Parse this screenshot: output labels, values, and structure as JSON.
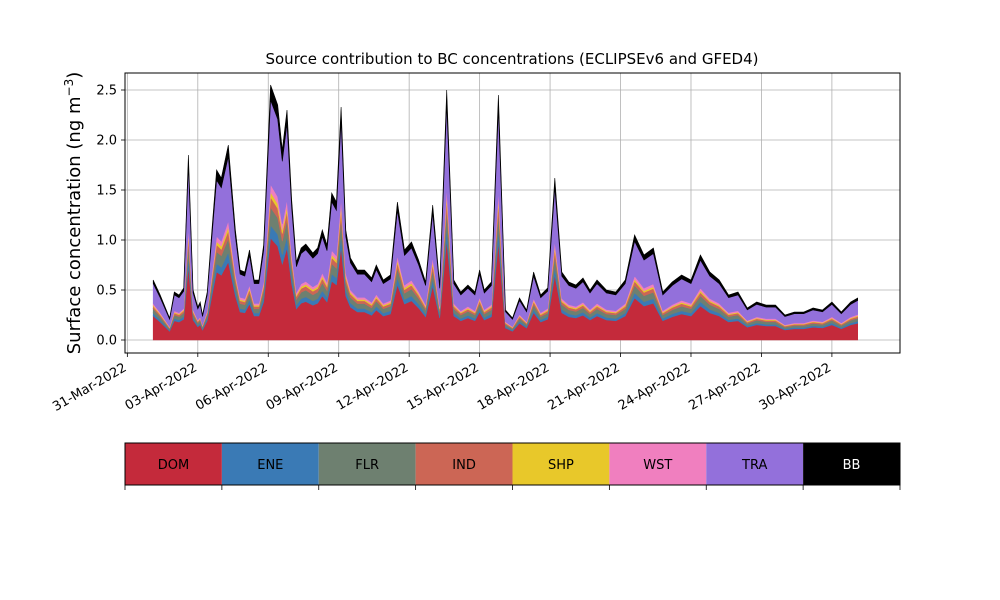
{
  "chart_data": {
    "type": "area",
    "stacked": true,
    "title": "Source contribution to BC concentrations (ECLIPSEv6 and GFED4)",
    "ylabel": "Surface concentration (ng m",
    "ylabel_sup": "−3",
    "ylabel_close": ")",
    "xlabel": "",
    "x_unit": "days since 31-Mar-2022",
    "xlim": [
      -0.1,
      32.9
    ],
    "ylim": [
      -0.13,
      2.67
    ],
    "grid": true,
    "x_ticks": [
      {
        "x": 0,
        "label": "31-Mar-2022"
      },
      {
        "x": 3,
        "label": "03-Apr-2022"
      },
      {
        "x": 6,
        "label": "06-Apr-2022"
      },
      {
        "x": 9,
        "label": "09-Apr-2022"
      },
      {
        "x": 12,
        "label": "12-Apr-2022"
      },
      {
        "x": 15,
        "label": "15-Apr-2022"
      },
      {
        "x": 18,
        "label": "18-Apr-2022"
      },
      {
        "x": 21,
        "label": "21-Apr-2022"
      },
      {
        "x": 24,
        "label": "24-Apr-2022"
      },
      {
        "x": 27,
        "label": "27-Apr-2022"
      },
      {
        "x": 30,
        "label": "30-Apr-2022"
      }
    ],
    "y_ticks": [
      {
        "y": 0.0,
        "label": "0.0"
      },
      {
        "y": 0.5,
        "label": "0.5"
      },
      {
        "y": 1.0,
        "label": "1.0"
      },
      {
        "y": 1.5,
        "label": "1.5"
      },
      {
        "y": 2.0,
        "label": "2.0"
      },
      {
        "y": 2.5,
        "label": "2.5"
      }
    ],
    "x": [
      1.1,
      1.4,
      1.8,
      2.0,
      2.2,
      2.4,
      2.6,
      2.8,
      3.0,
      3.1,
      3.2,
      3.4,
      3.6,
      3.8,
      4.0,
      4.3,
      4.6,
      4.8,
      5.0,
      5.2,
      5.4,
      5.6,
      5.8,
      6.1,
      6.4,
      6.6,
      6.8,
      7.0,
      7.2,
      7.4,
      7.6,
      7.9,
      8.1,
      8.3,
      8.5,
      8.7,
      8.9,
      9.1,
      9.3,
      9.5,
      9.8,
      10.1,
      10.4,
      10.6,
      10.9,
      11.2,
      11.5,
      11.8,
      12.1,
      12.4,
      12.7,
      13.0,
      13.3,
      13.6,
      13.9,
      14.2,
      14.5,
      14.8,
      15.0,
      15.2,
      15.5,
      15.8,
      16.1,
      16.4,
      16.7,
      17.0,
      17.3,
      17.6,
      17.9,
      18.2,
      18.5,
      18.8,
      19.1,
      19.4,
      19.7,
      20.0,
      20.4,
      20.8,
      21.2,
      21.6,
      22.0,
      22.4,
      22.8,
      23.2,
      23.6,
      24.0,
      24.4,
      24.8,
      25.2,
      25.6,
      26.0,
      26.4,
      26.8,
      27.2,
      27.6,
      28.0,
      28.4,
      28.8,
      29.2,
      29.6,
      30.0,
      30.4,
      30.8,
      31.1
    ],
    "total": [
      0.6,
      0.45,
      0.22,
      0.48,
      0.45,
      0.52,
      1.85,
      0.5,
      0.33,
      0.38,
      0.25,
      0.48,
      1.1,
      1.7,
      1.62,
      1.95,
      1.1,
      0.7,
      0.68,
      0.9,
      0.6,
      0.6,
      0.95,
      2.55,
      2.35,
      1.9,
      2.3,
      1.4,
      0.78,
      0.92,
      0.96,
      0.87,
      0.92,
      1.1,
      0.95,
      1.47,
      1.38,
      2.33,
      1.1,
      0.82,
      0.7,
      0.7,
      0.62,
      0.75,
      0.6,
      0.65,
      1.38,
      0.9,
      0.98,
      0.8,
      0.58,
      1.35,
      0.55,
      2.5,
      0.6,
      0.48,
      0.55,
      0.48,
      0.7,
      0.5,
      0.58,
      2.45,
      0.3,
      0.22,
      0.42,
      0.3,
      0.68,
      0.45,
      0.52,
      1.62,
      0.68,
      0.58,
      0.55,
      0.62,
      0.5,
      0.6,
      0.5,
      0.48,
      0.6,
      1.05,
      0.85,
      0.92,
      0.48,
      0.58,
      0.65,
      0.6,
      0.85,
      0.68,
      0.6,
      0.45,
      0.48,
      0.32,
      0.38,
      0.35,
      0.35,
      0.25,
      0.28,
      0.28,
      0.32,
      0.3,
      0.38,
      0.28,
      0.38,
      0.42
    ],
    "series": [
      {
        "name": "DOM",
        "color": "#c42a3b",
        "share": 0.4
      },
      {
        "name": "ENE",
        "color": "#3a7ab5",
        "share": 0.05
      },
      {
        "name": "FLR",
        "color": "#6e8070",
        "share": 0.07
      },
      {
        "name": "IND",
        "color": "#cc6655",
        "share": 0.04
      },
      {
        "name": "SHP",
        "color": "#e8c82a",
        "share": 0.02
      },
      {
        "name": "WST",
        "color": "#f07fbf",
        "share": 0.03
      },
      {
        "name": "TRA",
        "color": "#9370db",
        "share": 0.33
      },
      {
        "name": "BB",
        "color": "#000000",
        "share": 0.06
      }
    ]
  },
  "legend": {
    "items": [
      {
        "label": "DOM",
        "color": "#c42a3b",
        "text_color": "#000000"
      },
      {
        "label": "ENE",
        "color": "#3a7ab5",
        "text_color": "#000000"
      },
      {
        "label": "FLR",
        "color": "#6e8070",
        "text_color": "#000000"
      },
      {
        "label": "IND",
        "color": "#cc6655",
        "text_color": "#000000"
      },
      {
        "label": "SHP",
        "color": "#e8c82a",
        "text_color": "#000000"
      },
      {
        "label": "WST",
        "color": "#f07fbf",
        "text_color": "#000000"
      },
      {
        "label": "TRA",
        "color": "#9370db",
        "text_color": "#000000"
      },
      {
        "label": "BB",
        "color": "#000000",
        "text_color": "#ffffff"
      }
    ]
  }
}
